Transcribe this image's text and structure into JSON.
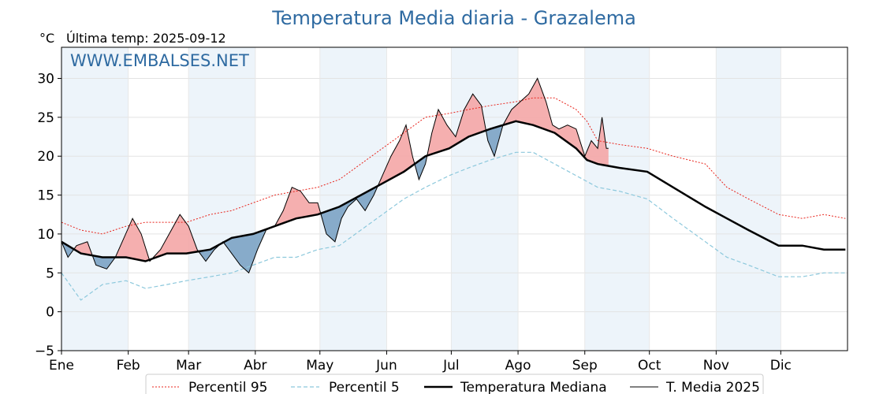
{
  "chart_data": {
    "type": "line",
    "title": "Temperatura Media diaria - Grazalema",
    "unit_label": "°C",
    "last_temp_label": "Última temp: 2025-09-12",
    "watermark": "WWW.EMBALSES.NET",
    "ylim": [
      -5,
      34
    ],
    "y_ticks": [
      -5,
      0,
      5,
      10,
      15,
      20,
      25,
      30
    ],
    "months": [
      "Ene",
      "Feb",
      "Mar",
      "Abr",
      "May",
      "Jun",
      "Jul",
      "Ago",
      "Sep",
      "Oct",
      "Nov",
      "Dic"
    ],
    "legend_placement": "bottom",
    "colors": {
      "p95": "#e8241c",
      "p5": "#8cc8dc",
      "median": "#000000",
      "current": "#000000",
      "above_fill": "#f4a6a6",
      "below_fill": "#7ba3c4",
      "title": "#2e6aa1",
      "month_band": "#edf4fa"
    },
    "series": [
      {
        "name": "Percentil 95",
        "points": [
          [
            1,
            11.5
          ],
          [
            10,
            10.5
          ],
          [
            20,
            10
          ],
          [
            31,
            11
          ],
          [
            40,
            11.5
          ],
          [
            50,
            11.5
          ],
          [
            59,
            11.5
          ],
          [
            70,
            12.5
          ],
          [
            80,
            13
          ],
          [
            90,
            14
          ],
          [
            100,
            15
          ],
          [
            110,
            15.5
          ],
          [
            120,
            16
          ],
          [
            130,
            17
          ],
          [
            140,
            19
          ],
          [
            150,
            21
          ],
          [
            160,
            23
          ],
          [
            170,
            25
          ],
          [
            181,
            25.5
          ],
          [
            190,
            26
          ],
          [
            200,
            26.5
          ],
          [
            212,
            27
          ],
          [
            220,
            27.5
          ],
          [
            230,
            27.5
          ],
          [
            240,
            26
          ],
          [
            245,
            24.5
          ],
          [
            250,
            22
          ],
          [
            260,
            21.5
          ],
          [
            273,
            21
          ],
          [
            285,
            20
          ],
          [
            300,
            19
          ],
          [
            310,
            16
          ],
          [
            320,
            14.5
          ],
          [
            334,
            12.5
          ],
          [
            345,
            12
          ],
          [
            355,
            12.5
          ],
          [
            365,
            12
          ]
        ]
      },
      {
        "name": "Percentil 5",
        "points": [
          [
            1,
            5
          ],
          [
            10,
            1.5
          ],
          [
            20,
            3.5
          ],
          [
            31,
            4
          ],
          [
            40,
            3
          ],
          [
            50,
            3.5
          ],
          [
            59,
            4
          ],
          [
            70,
            4.5
          ],
          [
            80,
            5
          ],
          [
            90,
            6
          ],
          [
            100,
            7
          ],
          [
            110,
            7
          ],
          [
            120,
            8
          ],
          [
            130,
            8.5
          ],
          [
            140,
            10.5
          ],
          [
            150,
            12.5
          ],
          [
            160,
            14.5
          ],
          [
            170,
            16
          ],
          [
            181,
            17.5
          ],
          [
            190,
            18.5
          ],
          [
            200,
            19.5
          ],
          [
            212,
            20.5
          ],
          [
            220,
            20.5
          ],
          [
            230,
            19
          ],
          [
            240,
            17.5
          ],
          [
            250,
            16
          ],
          [
            260,
            15.5
          ],
          [
            273,
            14.5
          ],
          [
            285,
            12
          ],
          [
            300,
            9
          ],
          [
            310,
            7
          ],
          [
            320,
            6
          ],
          [
            334,
            4.5
          ],
          [
            345,
            4.5
          ],
          [
            355,
            5
          ],
          [
            365,
            5
          ]
        ]
      },
      {
        "name": "Temperatura Mediana",
        "points": [
          [
            1,
            9
          ],
          [
            10,
            7.5
          ],
          [
            20,
            7
          ],
          [
            31,
            7
          ],
          [
            40,
            6.5
          ],
          [
            50,
            7.5
          ],
          [
            59,
            7.5
          ],
          [
            70,
            8
          ],
          [
            80,
            9.5
          ],
          [
            90,
            10
          ],
          [
            100,
            11
          ],
          [
            110,
            12
          ],
          [
            120,
            12.5
          ],
          [
            130,
            13.5
          ],
          [
            140,
            15
          ],
          [
            150,
            16.5
          ],
          [
            160,
            18
          ],
          [
            170,
            20
          ],
          [
            181,
            21
          ],
          [
            190,
            22.5
          ],
          [
            200,
            23.5
          ],
          [
            212,
            24.5
          ],
          [
            220,
            24
          ],
          [
            230,
            23
          ],
          [
            240,
            21
          ],
          [
            245,
            19.5
          ],
          [
            250,
            19
          ],
          [
            260,
            18.5
          ],
          [
            273,
            18
          ],
          [
            285,
            16
          ],
          [
            300,
            13.5
          ],
          [
            310,
            12
          ],
          [
            320,
            10.5
          ],
          [
            334,
            8.5
          ],
          [
            345,
            8.5
          ],
          [
            355,
            8
          ],
          [
            365,
            8
          ]
        ]
      },
      {
        "name": "T. Media 2025",
        "points": [
          [
            1,
            9
          ],
          [
            4,
            7
          ],
          [
            8,
            8.5
          ],
          [
            13,
            9
          ],
          [
            17,
            6
          ],
          [
            22,
            5.5
          ],
          [
            26,
            7
          ],
          [
            30,
            9.5
          ],
          [
            34,
            12
          ],
          [
            38,
            10
          ],
          [
            42,
            6.5
          ],
          [
            47,
            8
          ],
          [
            52,
            10.5
          ],
          [
            56,
            12.5
          ],
          [
            60,
            11
          ],
          [
            64,
            8
          ],
          [
            68,
            6.5
          ],
          [
            72,
            8
          ],
          [
            76,
            9
          ],
          [
            80,
            7.5
          ],
          [
            84,
            6
          ],
          [
            88,
            5
          ],
          [
            92,
            8
          ],
          [
            96,
            10.5
          ],
          [
            100,
            11
          ],
          [
            104,
            13
          ],
          [
            108,
            16
          ],
          [
            112,
            15.5
          ],
          [
            116,
            14
          ],
          [
            120,
            14
          ],
          [
            124,
            10
          ],
          [
            128,
            9
          ],
          [
            131,
            12
          ],
          [
            134,
            13.5
          ],
          [
            138,
            14.5
          ],
          [
            142,
            13
          ],
          [
            146,
            15
          ],
          [
            150,
            17.5
          ],
          [
            154,
            20
          ],
          [
            158,
            22
          ],
          [
            161,
            24
          ],
          [
            164,
            20
          ],
          [
            167,
            17
          ],
          [
            170,
            19
          ],
          [
            173,
            23
          ],
          [
            176,
            26
          ],
          [
            180,
            24
          ],
          [
            184,
            22.5
          ],
          [
            188,
            26
          ],
          [
            192,
            28
          ],
          [
            196,
            26.5
          ],
          [
            199,
            22
          ],
          [
            202,
            20
          ],
          [
            206,
            24
          ],
          [
            210,
            26
          ],
          [
            214,
            27
          ],
          [
            218,
            28
          ],
          [
            222,
            30
          ],
          [
            226,
            27
          ],
          [
            229,
            24
          ],
          [
            232,
            23.5
          ],
          [
            236,
            24
          ],
          [
            240,
            23.5
          ],
          [
            244,
            20
          ],
          [
            247,
            22
          ],
          [
            250,
            21
          ],
          [
            252,
            25
          ],
          [
            254,
            21
          ],
          [
            255,
            21
          ]
        ]
      }
    ],
    "legend": [
      "Percentil 95",
      "Percentil 5",
      "Temperatura Mediana",
      "T. Media 2025"
    ]
  }
}
